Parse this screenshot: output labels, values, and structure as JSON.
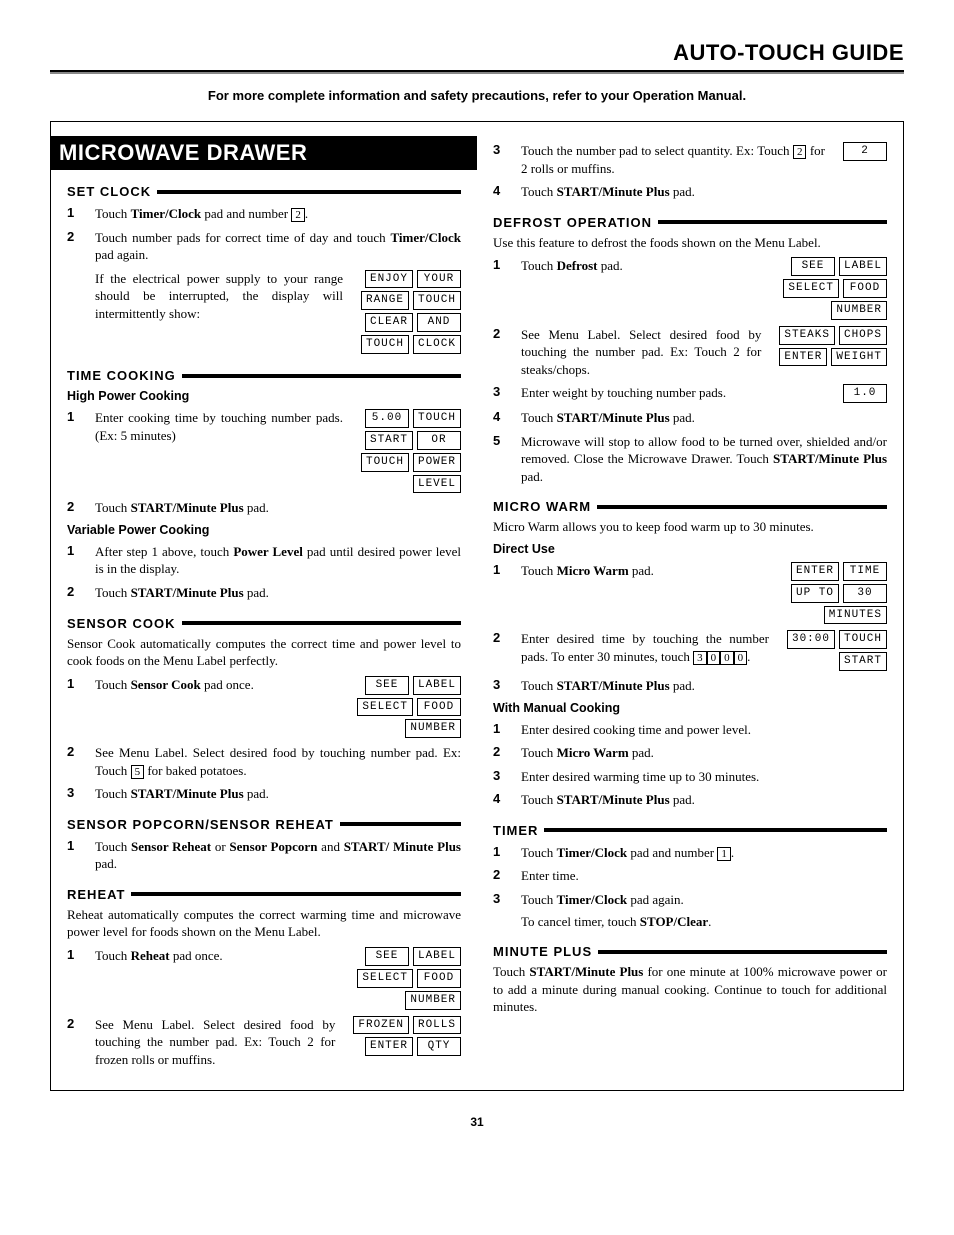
{
  "header": {
    "title": "AUTO-TOUCH GUIDE",
    "subhead": "For more complete information and safety precautions, refer to your Operation Manual."
  },
  "page_number": "31",
  "left": {
    "big_heading": "MICROWAVE DRAWER",
    "set_clock": {
      "heading": "SET CLOCK",
      "step1": "Touch <b>Timer/Clock</b> pad and number",
      "step1_key": "2",
      "step1_end": ".",
      "step2a": "Touch number pads for correct time of day and touch <b>Timer/Clock</b> pad again.",
      "step2b": "If the electrical power supply to your range should be interrupted, the display will intermittently show:",
      "display": [
        [
          "ENJOY",
          "YOUR"
        ],
        [
          "RANGE",
          "TOUCH"
        ],
        [
          "CLEAR",
          "AND"
        ],
        [
          "TOUCH",
          "CLOCK"
        ]
      ]
    },
    "time_cooking": {
      "heading": "TIME COOKING",
      "high_power": "High Power Cooking",
      "hp_step1": "Enter cooking time by touching number pads. (Ex: 5 minutes)",
      "hp_display": [
        [
          "5.00",
          "TOUCH"
        ],
        [
          "START",
          "OR"
        ],
        [
          "TOUCH",
          "POWER"
        ],
        [
          "LEVEL"
        ]
      ],
      "hp_step2": "Touch <b>START/Minute Plus</b> pad.",
      "var_power": "Variable Power Cooking",
      "vp_step1": "After step 1 above, touch <b>Power Level</b> pad until desired power level is in the display.",
      "vp_step2": "Touch <b>START/Minute Plus</b> pad."
    },
    "sensor_cook": {
      "heading": "SENSOR COOK",
      "intro": "Sensor Cook automatically computes the correct time and power level to cook foods on the Menu Label perfectly.",
      "step1": "Touch <b>Sensor Cook</b> pad once.",
      "display": [
        [
          "SEE",
          "LABEL"
        ],
        [
          "SELECT",
          "FOOD"
        ],
        [
          "NUMBER"
        ]
      ],
      "step2a": "See Menu Label. Select desired food by touching number pad. Ex: Touch",
      "step2_key": "5",
      "step2b": "for baked potatoes.",
      "step3": "Touch <b>START/Minute Plus</b> pad."
    },
    "popcorn": {
      "heading": "SENSOR POPCORN/SENSOR REHEAT",
      "step1": "Touch <b>Sensor Reheat</b> or <b>Sensor Popcorn</b> and <b>START/ Minute Plus</b> pad."
    },
    "reheat": {
      "heading": "REHEAT",
      "intro": "Reheat automatically computes the correct warming time and microwave power level for foods shown on the Menu Label.",
      "step1": "Touch <b>Reheat</b> pad once.",
      "display1": [
        [
          "SEE",
          "LABEL"
        ],
        [
          "SELECT",
          "FOOD"
        ],
        [
          "NUMBER"
        ]
      ],
      "step2": "See Menu Label. Select desired food by touching the number pad. Ex: Touch 2 for frozen rolls or muffins.",
      "display2": [
        [
          "FROZEN",
          "ROLLS"
        ],
        [
          "ENTER",
          "QTY"
        ]
      ]
    }
  },
  "right": {
    "cont": {
      "step3a": "Touch the number pad to select quantity. Ex: Touch",
      "step3_key": "2",
      "step3b": "for 2 rolls or muffins.",
      "step3_display": [
        [
          "2"
        ]
      ],
      "step4": "Touch <b>START/Minute Plus</b> pad."
    },
    "defrost": {
      "heading": "DEFROST OPERATION",
      "intro": "Use this feature to defrost the foods shown on the Menu Label.",
      "step1": "Touch <b>Defrost</b> pad.",
      "display1": [
        [
          "SEE",
          "LABEL"
        ],
        [
          "SELECT",
          "FOOD"
        ],
        [
          "NUMBER"
        ]
      ],
      "step2": "See Menu Label. Select desired food by touching the number pad. Ex: Touch 2 for steaks/chops.",
      "display2": [
        [
          "STEAKS",
          "CHOPS"
        ],
        [
          "ENTER",
          "WEIGHT"
        ]
      ],
      "step3": "Enter weight by touching number pads.",
      "display3": [
        [
          "1.0"
        ]
      ],
      "step4": "Touch <b>START/Minute Plus</b> pad.",
      "step5": "Microwave will stop to allow food to be turned over, shielded and/or removed. Close the Microwave Drawer. Touch <b>START/Minute Plus</b> pad."
    },
    "micro_warm": {
      "heading": "MICRO WARM",
      "intro": "Micro Warm allows you to keep food warm up to 30 minutes.",
      "direct": "Direct Use",
      "d_step1": "Touch <b>Micro Warm</b> pad.",
      "d_display1": [
        [
          "ENTER",
          "TIME"
        ],
        [
          "UP TO",
          "30"
        ],
        [
          "MINUTES"
        ]
      ],
      "d_step2a": "Enter desired time by touching the number pads. To enter 30 minutes, touch",
      "d_step2_keys": [
        "3",
        "0",
        "0",
        "0"
      ],
      "d_step2b": ".",
      "d_display2": [
        [
          "30:00",
          "TOUCH"
        ],
        [
          "START"
        ]
      ],
      "d_step3": "Touch <b>START/Minute Plus</b> pad.",
      "manual": "With Manual Cooking",
      "m_step1": "Enter desired cooking time and power level.",
      "m_step2": "Touch <b>Micro Warm</b> pad.",
      "m_step3": "Enter desired warming time up to 30 minutes.",
      "m_step4": "Touch <b>START/Minute Plus</b> pad."
    },
    "timer": {
      "heading": "TIMER",
      "step1a": "Touch <b>Timer/Clock</b> pad and number",
      "step1_key": "1",
      "step1b": ".",
      "step2": "Enter time.",
      "step3": "Touch <b>Timer/Clock</b> pad again.",
      "step3_extra": "To cancel timer, touch <b>STOP/Clear</b>."
    },
    "minute_plus": {
      "heading": "MINUTE PLUS",
      "text": "Touch <b>START/Minute Plus</b> for one minute at 100% microwave power or to add a minute during manual cooking. Continue to touch for additional minutes."
    }
  }
}
